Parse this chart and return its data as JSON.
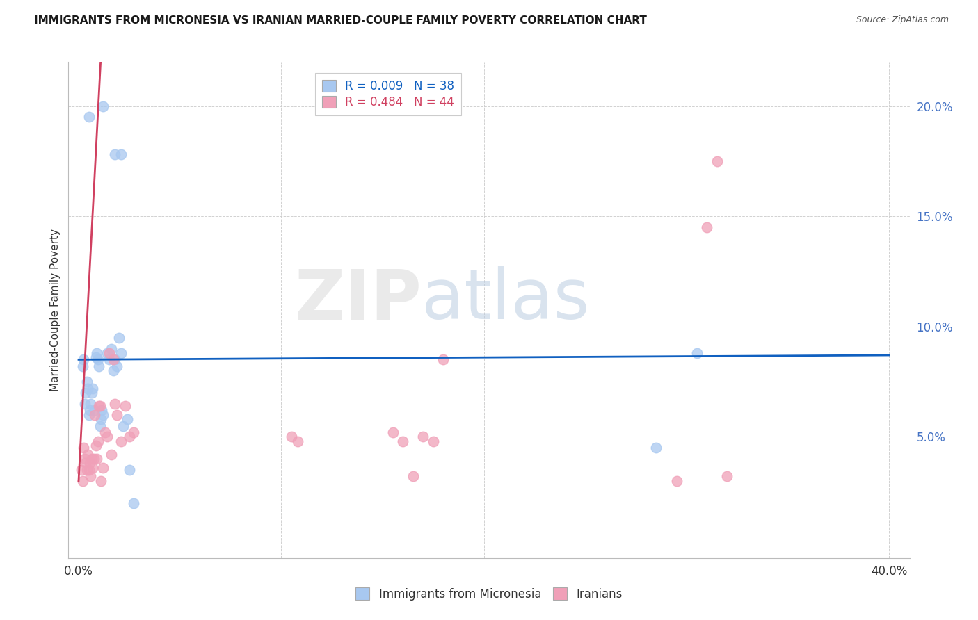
{
  "title": "IMMIGRANTS FROM MICRONESIA VS IRANIAN MARRIED-COUPLE FAMILY POVERTY CORRELATION CHART",
  "source": "Source: ZipAtlas.com",
  "ylabel": "Married-Couple Family Poverty",
  "xlim_pct": [
    0.0,
    40.0
  ],
  "ylim_pct": [
    0.0,
    22.0
  ],
  "xticks_pct": [
    0.0,
    10.0,
    20.0,
    30.0,
    40.0
  ],
  "xtick_labels": [
    "0.0%",
    "",
    "",
    "",
    "40.0%"
  ],
  "yticks_pct": [
    5.0,
    10.0,
    15.0,
    20.0
  ],
  "ytick_labels": [
    "5.0%",
    "10.0%",
    "15.0%",
    "20.0%"
  ],
  "color_blue": "#A8C8F0",
  "color_pink": "#F0A0B8",
  "line_blue": "#1060C0",
  "line_pink": "#D04060",
  "blue_line_y_intercept": 8.5,
  "blue_line_slope": 0.005,
  "pink_line_y_intercept": 3.0,
  "pink_line_slope": 17.5,
  "micronesia_x": [
    0.5,
    1.2,
    1.8,
    2.1,
    0.2,
    0.25,
    0.3,
    0.35,
    0.4,
    0.45,
    0.5,
    0.55,
    0.6,
    0.65,
    0.7,
    0.8,
    0.85,
    0.9,
    0.95,
    1.0,
    1.05,
    1.1,
    1.15,
    1.2,
    1.4,
    1.5,
    1.6,
    1.7,
    1.8,
    1.9,
    2.0,
    2.1,
    2.2,
    2.4,
    2.5,
    2.7,
    28.5,
    30.5
  ],
  "micronesia_y": [
    19.5,
    20.0,
    17.8,
    17.8,
    8.2,
    8.5,
    6.5,
    7.0,
    7.5,
    7.2,
    6.0,
    6.2,
    6.5,
    7.0,
    7.2,
    6.2,
    8.6,
    8.8,
    8.5,
    8.2,
    5.5,
    5.8,
    6.2,
    6.0,
    8.8,
    8.5,
    9.0,
    8.0,
    8.5,
    8.2,
    9.5,
    8.8,
    5.5,
    5.8,
    3.5,
    2.0,
    4.5,
    8.8
  ],
  "iranians_x": [
    0.15,
    0.2,
    0.25,
    0.3,
    0.35,
    0.4,
    0.45,
    0.5,
    0.55,
    0.6,
    0.65,
    0.7,
    0.75,
    0.8,
    0.85,
    0.9,
    0.95,
    1.0,
    1.05,
    1.1,
    1.2,
    1.3,
    1.4,
    1.5,
    1.6,
    1.7,
    1.8,
    1.9,
    2.1,
    2.3,
    2.5,
    2.7,
    10.5,
    10.8,
    15.5,
    16.0,
    16.5,
    17.0,
    17.5,
    18.0,
    29.5,
    31.0,
    31.5,
    32.0
  ],
  "iranians_y": [
    3.5,
    3.0,
    4.5,
    4.0,
    3.8,
    3.5,
    4.2,
    3.5,
    3.8,
    3.2,
    4.0,
    3.6,
    4.0,
    6.0,
    4.6,
    4.0,
    4.8,
    6.4,
    6.4,
    3.0,
    3.6,
    5.2,
    5.0,
    8.8,
    4.2,
    8.5,
    6.5,
    6.0,
    4.8,
    6.4,
    5.0,
    5.2,
    5.0,
    4.8,
    5.2,
    4.8,
    3.2,
    5.0,
    4.8,
    8.5,
    3.0,
    14.5,
    17.5,
    3.2
  ]
}
